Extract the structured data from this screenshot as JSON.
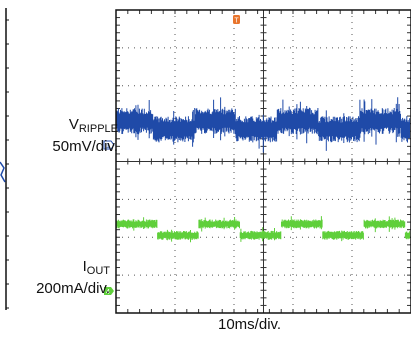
{
  "chart_data": {
    "type": "line",
    "time_per_div": "10ms/div.",
    "time_per_div_ms": 10,
    "x_divisions": 10,
    "y_divisions": 8,
    "grid": true,
    "trigger_marker": "T",
    "series": [
      {
        "name": "V_RIPPLE",
        "name_main": "V",
        "name_sub": "RIPPLE",
        "scale": "50mV/div.",
        "channel_marker": "1",
        "color": "#1f4aa8",
        "center_div": 4.85,
        "levels_div": [
          0.0,
          0.22
        ],
        "period_ms": 14,
        "duty": 0.5,
        "noise_div": 0.35
      },
      {
        "name": "I_OUT",
        "name_main": "I",
        "name_sub": "OUT",
        "scale": "200mA/div.",
        "channel_marker": "4",
        "color": "#5fcf3a",
        "center_div": 2.2,
        "levels_div": [
          -0.15,
          0.15
        ],
        "period_ms": 14,
        "duty": 0.5,
        "noise_div": 0.12
      }
    ]
  },
  "left_fragment_color": "#1f4aa8",
  "trigger_color": "#e8742c"
}
